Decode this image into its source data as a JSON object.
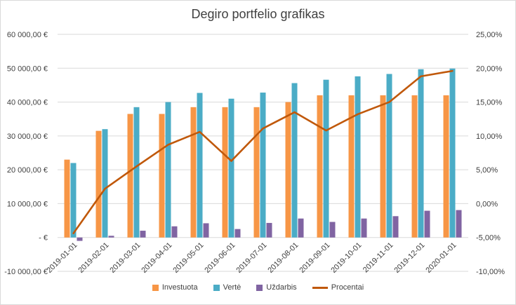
{
  "chart_data": {
    "type": "bar",
    "title": "Degiro portfelio grafikas",
    "categories": [
      "2019-01-01",
      "2019-02-01",
      "2019-03-01",
      "2019-04-01",
      "2019-05-01",
      "2019-06-01",
      "2019-07-01",
      "2019-08-01",
      "2019-09-01",
      "2019-10-01",
      "2019-11-01",
      "2019-12-01",
      "2020-01-01"
    ],
    "series": [
      {
        "name": "Investuota",
        "kind": "bar",
        "axis": "left",
        "color": "#f79646",
        "values": [
          23000,
          31500,
          36500,
          36500,
          38500,
          38500,
          38500,
          40000,
          42000,
          42000,
          42000,
          42000,
          42000
        ]
      },
      {
        "name": "Vertė",
        "kind": "bar",
        "axis": "left",
        "color": "#4bacc6",
        "values": [
          22000,
          32000,
          38500,
          40000,
          42700,
          41000,
          42800,
          45600,
          46600,
          47600,
          48300,
          49700,
          49900
        ]
      },
      {
        "name": "Uždarbis",
        "kind": "bar",
        "axis": "left",
        "color": "#8064a2",
        "values": [
          -1000,
          500,
          2000,
          3300,
          4200,
          2500,
          4300,
          5600,
          4600,
          5600,
          6300,
          7900,
          8100
        ]
      },
      {
        "name": "Procentai",
        "kind": "line",
        "axis": "right",
        "color": "#c0580a",
        "values": [
          -4.4,
          2.2,
          5.5,
          8.7,
          10.6,
          6.3,
          11.1,
          13.5,
          10.8,
          13.2,
          15.0,
          18.8,
          19.6
        ]
      }
    ],
    "left_axis": {
      "ylim": [
        -10000,
        60000
      ],
      "tick_labels": [
        "-10 000,00 €",
        "-   €",
        "10 000,00 €",
        "20 000,00 €",
        "30 000,00 €",
        "40 000,00 €",
        "50 000,00 €",
        "60 000,00 €"
      ],
      "tick_values": [
        -10000,
        0,
        10000,
        20000,
        30000,
        40000,
        50000,
        60000
      ]
    },
    "right_axis": {
      "ylim": [
        -10,
        25
      ],
      "tick_labels": [
        "-10,00%",
        "-5,00%",
        "0,00%",
        "5,00%",
        "10,00%",
        "15,00%",
        "20,00%",
        "25,00%"
      ],
      "tick_values": [
        -10,
        -5,
        0,
        5,
        10,
        15,
        20,
        25
      ]
    },
    "grid": true,
    "legend_position": "bottom"
  }
}
